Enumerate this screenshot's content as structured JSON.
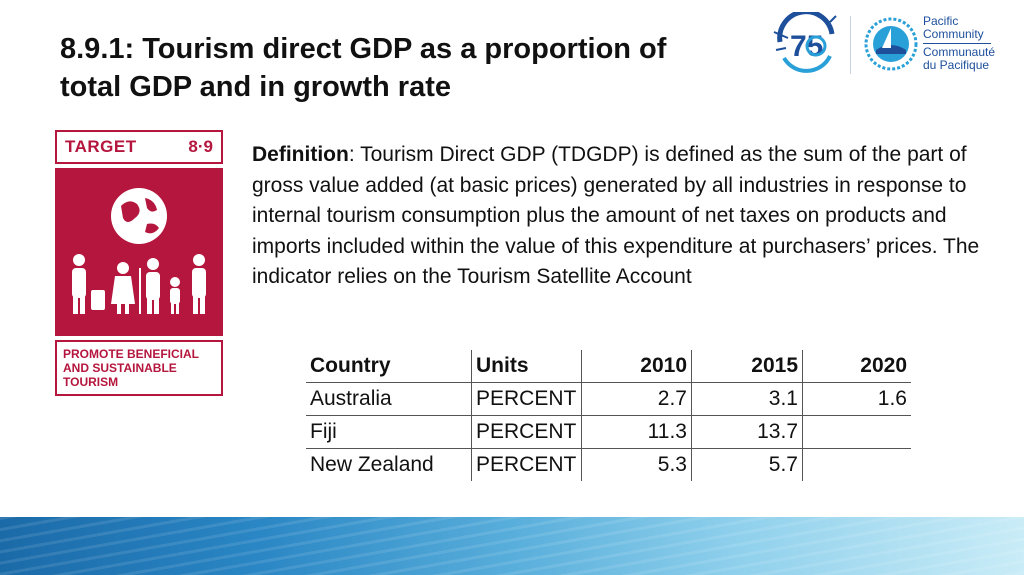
{
  "title": {
    "line1": "8.9.1: Tourism direct GDP as a proportion of",
    "line2": "total GDP and in growth rate"
  },
  "logos": {
    "anniversary_icon": "spc-75th-anniversary-logo",
    "spc_icon": "pacific-community-logo",
    "spc_name_en_1": "Pacific",
    "spc_name_en_2": "Community",
    "spc_name_fr_1": "Communauté",
    "spc_name_fr_2": "du Pacifique"
  },
  "sdg": {
    "target_label": "TARGET",
    "target_number": "8·9",
    "icon": "sdg-8-9-tourism-icon",
    "caption_lines": [
      "PROMOTE BENEFICIAL",
      "AND SUSTAINABLE",
      "TOURISM"
    ],
    "color": "#b5163d"
  },
  "definition": {
    "label": "Definition",
    "text": ": Tourism Direct GDP (TDGDP) is defined as the sum of the part of gross value added (at basic prices) generated by all industries in response to internal tourism consumption plus the amount of net taxes on products and imports included within the value of this expenditure at purchasers’ prices. The indicator relies on the Tourism Satellite Account"
  },
  "table": {
    "headers": [
      "Country",
      "Units",
      "2010",
      "2015",
      "2020"
    ],
    "rows": [
      [
        "Australia",
        "PERCENT",
        "2.7",
        "3.1",
        "1.6"
      ],
      [
        "Fiji",
        "PERCENT",
        "11.3",
        "13.7",
        ""
      ],
      [
        "New Zealand",
        "PERCENT",
        "5.3",
        "5.7",
        ""
      ]
    ]
  },
  "colors": {
    "accent": "#b5163d",
    "band_dark": "#1b6aa8",
    "band_light": "#c9ecf7",
    "spc_blue": "#1d4f9b"
  }
}
